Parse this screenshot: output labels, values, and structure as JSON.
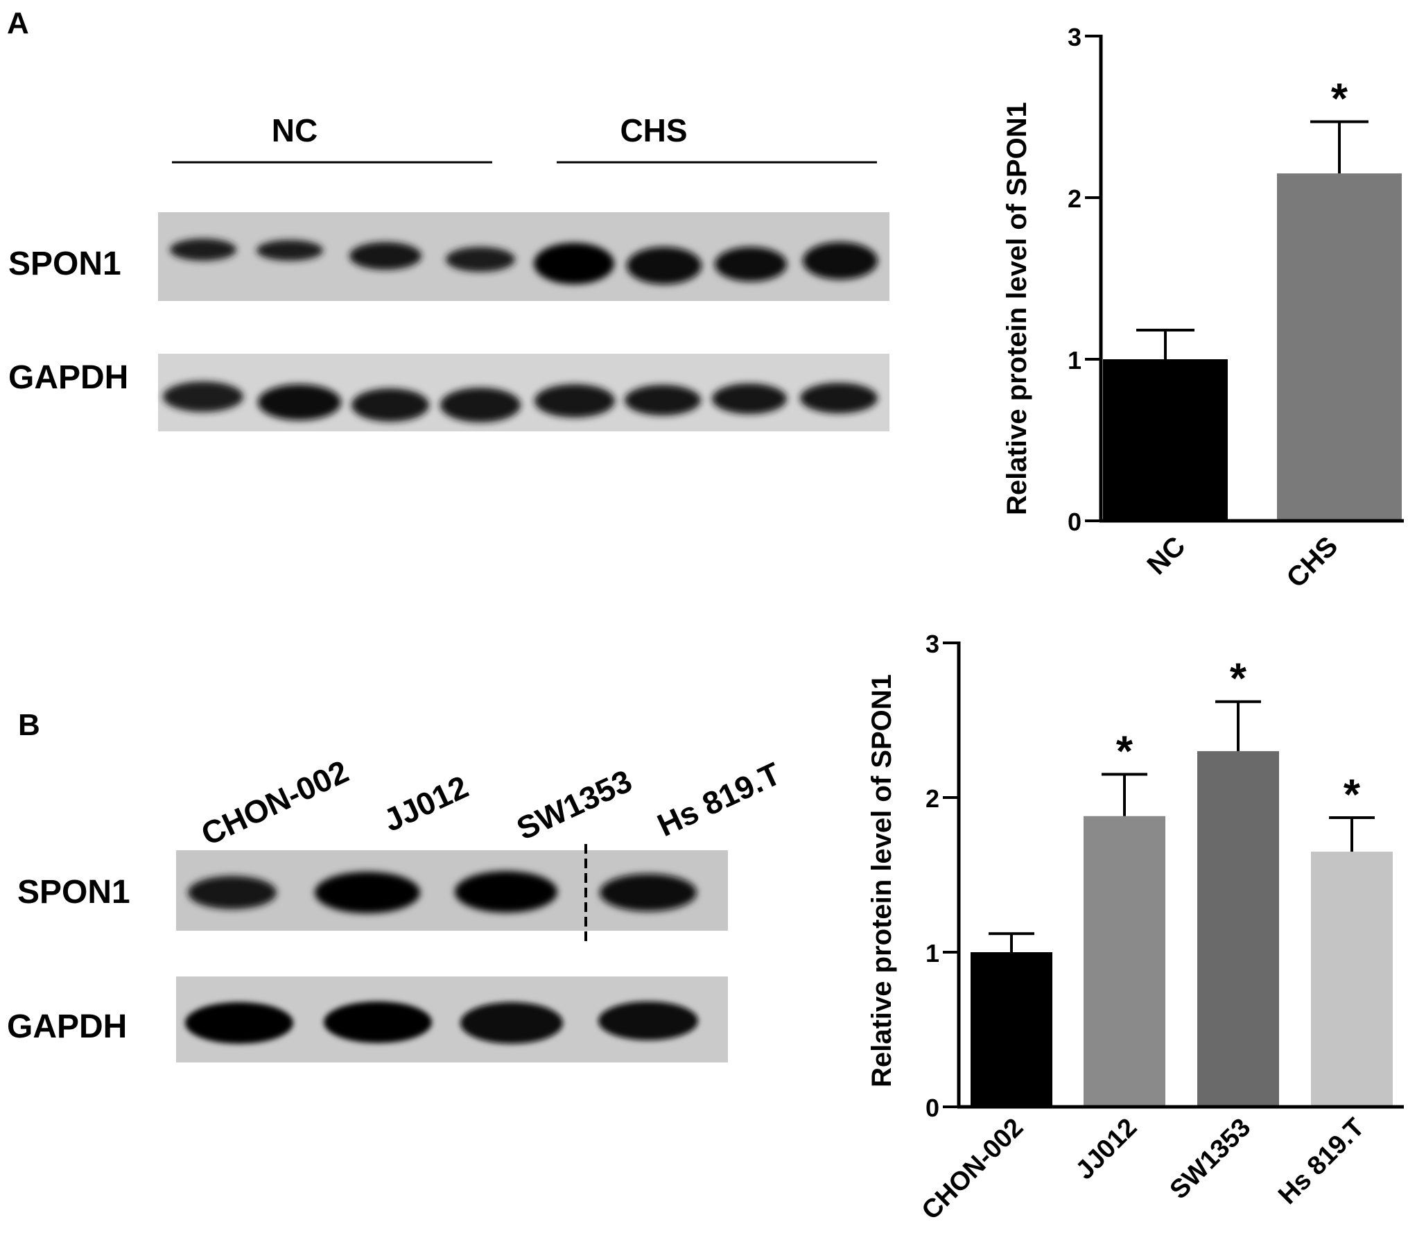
{
  "panels": {
    "a": {
      "label": "A"
    },
    "b": {
      "label": "B"
    }
  },
  "blot_a": {
    "groups": [
      "NC",
      "CHS"
    ],
    "rows": [
      "SPON1",
      "GAPDH"
    ]
  },
  "blot_b": {
    "lanes": [
      "CHON-002",
      "JJ012",
      "SW1353",
      "Hs 819.T"
    ],
    "rows": [
      "SPON1",
      "GAPDH"
    ]
  },
  "chart_data": [
    {
      "type": "bar",
      "panel": "A",
      "categories": [
        "NC",
        "CHS"
      ],
      "values": [
        1.0,
        2.15
      ],
      "errors": [
        0.18,
        0.32
      ],
      "significance": [
        "",
        "*"
      ],
      "colors": [
        "#000000",
        "#7a7a7a"
      ],
      "ylabel": "Relative protein level of  SPON1",
      "xlabel": "",
      "ylim": [
        0,
        3
      ],
      "yticks": [
        "0",
        "1",
        "2",
        "3"
      ]
    },
    {
      "type": "bar",
      "panel": "B",
      "categories": [
        "CHON-002",
        "JJ012",
        "SW1353",
        "Hs 819.T"
      ],
      "values": [
        1.0,
        1.88,
        2.3,
        1.65
      ],
      "errors": [
        0.12,
        0.27,
        0.32,
        0.22
      ],
      "significance": [
        "",
        "*",
        "*",
        "*"
      ],
      "colors": [
        "#000000",
        "#8a8a8a",
        "#6a6a6a",
        "#c4c4c4"
      ],
      "ylabel": "Relative protein level of  SPON1",
      "xlabel": "",
      "ylim": [
        0,
        3
      ],
      "yticks": [
        "0",
        "1",
        "2",
        "3"
      ]
    }
  ]
}
